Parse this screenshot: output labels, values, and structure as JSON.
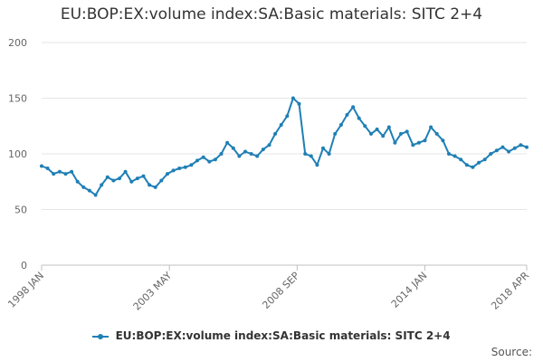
{
  "chart_data": {
    "type": "line",
    "title": "EU:BOP:EX:volume index:SA:Basic materials: SITC 2+4",
    "xlabel": "",
    "ylabel": "",
    "ylim": [
      0,
      200
    ],
    "yticks": [
      0,
      50,
      100,
      150,
      200
    ],
    "xlim": [
      "1998 JAN",
      "2018 APR"
    ],
    "xticks": [
      {
        "label": "1998 JAN",
        "date": "1998-01"
      },
      {
        "label": "2003 MAY",
        "date": "2003-05"
      },
      {
        "label": "2008 SEP",
        "date": "2008-09"
      },
      {
        "label": "2014 JAN",
        "date": "2014-01"
      },
      {
        "label": "2018 APR",
        "date": "2018-04"
      }
    ],
    "legend_position": "bottom",
    "source_label": "Source:",
    "series": [
      {
        "name": "EU:BOP:EX:volume index:SA:Basic materials: SITC 2+4",
        "color": "#1f7fb5",
        "points": [
          [
            "1998-01",
            89
          ],
          [
            "1998-04",
            87
          ],
          [
            "1998-07",
            82
          ],
          [
            "1998-10",
            84
          ],
          [
            "1999-01",
            82
          ],
          [
            "1999-04",
            84
          ],
          [
            "1999-07",
            75
          ],
          [
            "1999-10",
            70
          ],
          [
            "2000-01",
            67
          ],
          [
            "2000-04",
            63
          ],
          [
            "2000-07",
            72
          ],
          [
            "2000-10",
            79
          ],
          [
            "2001-01",
            76
          ],
          [
            "2001-04",
            78
          ],
          [
            "2001-07",
            84
          ],
          [
            "2001-10",
            75
          ],
          [
            "2002-01",
            78
          ],
          [
            "2002-04",
            80
          ],
          [
            "2002-07",
            72
          ],
          [
            "2002-10",
            70
          ],
          [
            "2003-01",
            76
          ],
          [
            "2003-04",
            82
          ],
          [
            "2003-07",
            85
          ],
          [
            "2003-10",
            87
          ],
          [
            "2004-01",
            88
          ],
          [
            "2004-04",
            90
          ],
          [
            "2004-07",
            94
          ],
          [
            "2004-10",
            97
          ],
          [
            "2005-01",
            93
          ],
          [
            "2005-04",
            95
          ],
          [
            "2005-07",
            100
          ],
          [
            "2005-10",
            110
          ],
          [
            "2006-01",
            105
          ],
          [
            "2006-04",
            98
          ],
          [
            "2006-07",
            102
          ],
          [
            "2006-10",
            100
          ],
          [
            "2007-01",
            98
          ],
          [
            "2007-04",
            104
          ],
          [
            "2007-07",
            108
          ],
          [
            "2007-10",
            118
          ],
          [
            "2008-01",
            126
          ],
          [
            "2008-04",
            134
          ],
          [
            "2008-07",
            150
          ],
          [
            "2008-10",
            145
          ],
          [
            "2009-01",
            100
          ],
          [
            "2009-04",
            98
          ],
          [
            "2009-07",
            90
          ],
          [
            "2009-10",
            105
          ],
          [
            "2010-01",
            100
          ],
          [
            "2010-04",
            118
          ],
          [
            "2010-07",
            126
          ],
          [
            "2010-10",
            135
          ],
          [
            "2011-01",
            142
          ],
          [
            "2011-04",
            132
          ],
          [
            "2011-07",
            125
          ],
          [
            "2011-10",
            118
          ],
          [
            "2012-01",
            122
          ],
          [
            "2012-04",
            116
          ],
          [
            "2012-07",
            124
          ],
          [
            "2012-10",
            110
          ],
          [
            "2013-01",
            118
          ],
          [
            "2013-04",
            120
          ],
          [
            "2013-07",
            108
          ],
          [
            "2013-10",
            110
          ],
          [
            "2014-01",
            112
          ],
          [
            "2014-04",
            124
          ],
          [
            "2014-07",
            118
          ],
          [
            "2014-10",
            112
          ],
          [
            "2015-01",
            100
          ],
          [
            "2015-04",
            98
          ],
          [
            "2015-07",
            95
          ],
          [
            "2015-10",
            90
          ],
          [
            "2016-01",
            88
          ],
          [
            "2016-04",
            92
          ],
          [
            "2016-07",
            95
          ],
          [
            "2016-10",
            100
          ],
          [
            "2017-01",
            103
          ],
          [
            "2017-04",
            106
          ],
          [
            "2017-07",
            102
          ],
          [
            "2017-10",
            105
          ],
          [
            "2018-01",
            108
          ],
          [
            "2018-04",
            106
          ]
        ]
      }
    ]
  }
}
